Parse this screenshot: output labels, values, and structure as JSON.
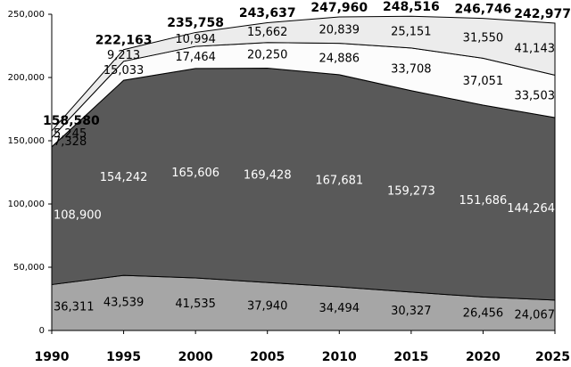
{
  "chart_data": {
    "type": "stacked_area",
    "x": [
      1990,
      1995,
      2000,
      2005,
      2010,
      2015,
      2020,
      2025
    ],
    "xlim": [
      1990,
      2025
    ],
    "xticks": [
      1990,
      1995,
      2000,
      2005,
      2010,
      2015,
      2020,
      2025
    ],
    "ylim": [
      0,
      250000
    ],
    "yticks": [
      0,
      {
        "value": 50000,
        "label": "50,000"
      },
      {
        "value": 100000,
        "label": "100,000"
      },
      {
        "value": 150000,
        "label": "150,000"
      },
      {
        "value": 200000,
        "label": "200,000"
      },
      {
        "value": 250000,
        "label": "250,000"
      }
    ],
    "series": [
      {
        "color": "#a6a6a6",
        "values": [
          36311,
          43539,
          41535,
          37940,
          34494,
          30327,
          26456,
          24067
        ],
        "value_labels": [
          "36,311",
          "43,539",
          "41,535",
          "37,940",
          "34,494",
          "30,327",
          "26,456",
          "24,067"
        ],
        "label_color": "#000"
      },
      {
        "color": "#595959",
        "values": [
          108900,
          154242,
          165606,
          169428,
          167681,
          159273,
          151686,
          144264
        ],
        "value_labels": [
          "108,900",
          "154,242",
          "165,606",
          "169,428",
          "167,681",
          "159,273",
          "151,686",
          "144,264"
        ],
        "label_color": "#fff"
      },
      {
        "color": "#fcfcfc",
        "values": [
          7328,
          15033,
          17464,
          20250,
          24886,
          33708,
          37051,
          33503
        ],
        "value_labels": [
          "7,328",
          "15,033",
          "17,464",
          "20,250",
          "24,886",
          "33,708",
          "37,051",
          "33,503"
        ],
        "label_color": "#000"
      },
      {
        "color": "#ececec",
        "values": [
          5245,
          9213,
          10994,
          15662,
          20839,
          25151,
          31550,
          41143
        ],
        "value_labels": [
          "5,245",
          "9,213",
          "10,994",
          "15,662",
          "20,839",
          "25,151",
          "31,550",
          "41,143"
        ],
        "label_color": "#000"
      }
    ],
    "totals": {
      "values": [
        158580,
        222163,
        235758,
        243637,
        247960,
        248516,
        246746,
        242977
      ],
      "value_labels": [
        "158,580",
        "222,163",
        "235,758",
        "243,637",
        "247,960",
        "248,516",
        "246,746",
        "242,977"
      ]
    }
  }
}
